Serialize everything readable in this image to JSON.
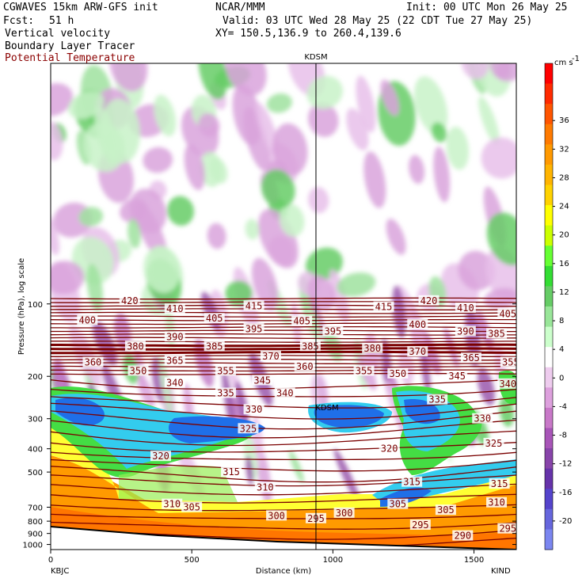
{
  "header": {
    "model_title": "CGWAVES 15km ARW-GFS init",
    "org": "NCAR/MMM",
    "init_label": "Init: 00 UTC Mon 26 May 25",
    "fcst_label": "Fcst:",
    "fcst_hours": "51 h",
    "valid_label": "Valid: 03 UTC Wed 28 May 25 (22 CDT Tue 27 May 25)",
    "field1": "Vertical velocity",
    "field2": "Boundary Layer Tracer",
    "field3": "Potential Temperature",
    "xy_line": "XY= 150.5,136.9 to 260.4,139.6"
  },
  "colors": {
    "theta_contour": "#7a0000",
    "panel_bg": "#ffffff"
  },
  "chart_data": {
    "type": "heatmap",
    "title": "",
    "ylabel": "Pressure (hPa), log scale",
    "xlabel": "Distance (km)",
    "y_scale": "log",
    "ylim": [
      1050,
      10
    ],
    "xlim": [
      0,
      1650
    ],
    "x_ticks": [
      0,
      500,
      1000,
      1500
    ],
    "y_ticks": [
      1000,
      900,
      800,
      700,
      500,
      400,
      300,
      200,
      100
    ],
    "left_station": "KBJC",
    "right_station": "KIND",
    "mid_station": "KDSM",
    "mid_station_km": 940,
    "colorbar": {
      "unit_label": "cm s",
      "unit_exp": "-1",
      "ticks": [
        36,
        32,
        28,
        24,
        20,
        16,
        12,
        8,
        4,
        0,
        -4,
        -8,
        -12,
        -16,
        -20
      ],
      "colors": [
        "#ff0000",
        "#ff2a00",
        "#ff5500",
        "#ff7a00",
        "#ff9900",
        "#ffb400",
        "#ffd200",
        "#ffff00",
        "#ccff00",
        "#66ff33",
        "#33dd33",
        "#66cc66",
        "#99e699",
        "#ccffcc",
        "#ffffff",
        "#eeccee",
        "#dda0dd",
        "#c878c8",
        "#a855b8",
        "#8844aa",
        "#6633aa",
        "#5544cc",
        "#6666dd",
        "#7b86f0"
      ]
    },
    "theta_labels": [
      {
        "v": "420",
        "km": 280,
        "p": 97
      },
      {
        "v": "410",
        "km": 440,
        "p": 105
      },
      {
        "v": "415",
        "km": 720,
        "p": 102
      },
      {
        "v": "415",
        "km": 1180,
        "p": 103
      },
      {
        "v": "420",
        "km": 1340,
        "p": 97
      },
      {
        "v": "410",
        "km": 1470,
        "p": 104
      },
      {
        "v": "405",
        "km": 1620,
        "p": 110
      },
      {
        "v": "400",
        "km": 130,
        "p": 117
      },
      {
        "v": "405",
        "km": 580,
        "p": 115
      },
      {
        "v": "405",
        "km": 890,
        "p": 118
      },
      {
        "v": "400",
        "km": 1300,
        "p": 122
      },
      {
        "v": "395",
        "km": 720,
        "p": 127
      },
      {
        "v": "395",
        "km": 1000,
        "p": 130
      },
      {
        "v": "390",
        "km": 440,
        "p": 137
      },
      {
        "v": "390",
        "km": 1470,
        "p": 130
      },
      {
        "v": "385",
        "km": 1580,
        "p": 133
      },
      {
        "v": "385",
        "km": 580,
        "p": 150
      },
      {
        "v": "385",
        "km": 920,
        "p": 150
      },
      {
        "v": "380",
        "km": 300,
        "p": 150
      },
      {
        "v": "380",
        "km": 1140,
        "p": 153
      },
      {
        "v": "370",
        "km": 780,
        "p": 165
      },
      {
        "v": "370",
        "km": 1300,
        "p": 158
      },
      {
        "v": "365",
        "km": 440,
        "p": 172
      },
      {
        "v": "365",
        "km": 1490,
        "p": 168
      },
      {
        "v": "360",
        "km": 150,
        "p": 175
      },
      {
        "v": "360",
        "km": 900,
        "p": 182
      },
      {
        "v": "355",
        "km": 620,
        "p": 190
      },
      {
        "v": "355",
        "km": 1110,
        "p": 190
      },
      {
        "v": "355",
        "km": 1630,
        "p": 175
      },
      {
        "v": "350",
        "km": 310,
        "p": 190
      },
      {
        "v": "350",
        "km": 1230,
        "p": 195
      },
      {
        "v": "345",
        "km": 750,
        "p": 208
      },
      {
        "v": "345",
        "km": 1440,
        "p": 200
      },
      {
        "v": "340",
        "km": 440,
        "p": 213
      },
      {
        "v": "340",
        "km": 830,
        "p": 235
      },
      {
        "v": "340",
        "km": 1620,
        "p": 215
      },
      {
        "v": "335",
        "km": 620,
        "p": 235
      },
      {
        "v": "335",
        "km": 1370,
        "p": 250
      },
      {
        "v": "330",
        "km": 720,
        "p": 275
      },
      {
        "v": "330",
        "km": 1530,
        "p": 300
      },
      {
        "v": "325",
        "km": 700,
        "p": 330
      },
      {
        "v": "325",
        "km": 1570,
        "p": 380
      },
      {
        "v": "320",
        "km": 1200,
        "p": 400
      },
      {
        "v": "320",
        "km": 390,
        "p": 430
      },
      {
        "v": "315",
        "km": 640,
        "p": 500
      },
      {
        "v": "315",
        "km": 1280,
        "p": 550
      },
      {
        "v": "315",
        "km": 1590,
        "p": 560
      },
      {
        "v": "310",
        "km": 760,
        "p": 580
      },
      {
        "v": "310",
        "km": 430,
        "p": 680
      },
      {
        "v": "310",
        "km": 1580,
        "p": 670
      },
      {
        "v": "305",
        "km": 500,
        "p": 700
      },
      {
        "v": "305",
        "km": 1230,
        "p": 680
      },
      {
        "v": "305",
        "km": 1400,
        "p": 720
      },
      {
        "v": "300",
        "km": 800,
        "p": 760
      },
      {
        "v": "300",
        "km": 1040,
        "p": 740
      },
      {
        "v": "295",
        "km": 940,
        "p": 780
      },
      {
        "v": "295",
        "km": 1310,
        "p": 830
      },
      {
        "v": "295",
        "km": 1620,
        "p": 860
      },
      {
        "v": "290",
        "km": 1460,
        "p": 920
      }
    ]
  }
}
